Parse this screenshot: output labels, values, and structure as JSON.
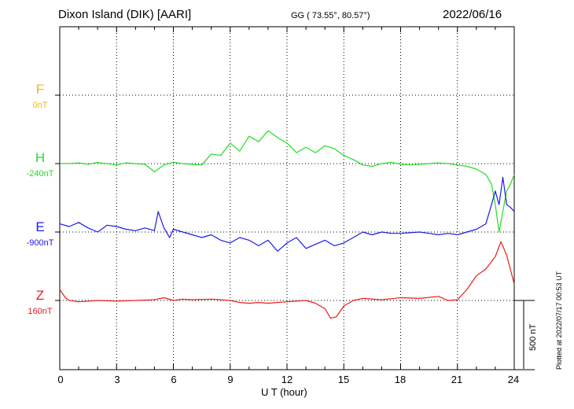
{
  "header": {
    "station": "Dixon Island (DIK)  [AARI]",
    "coords": "GG ( 73.55°,  80.57°)",
    "date": "2022/06/16"
  },
  "channels": [
    {
      "id": "F",
      "letter": "F",
      "baseline": "0nT",
      "color": "#f2b705"
    },
    {
      "id": "H",
      "letter": "H",
      "baseline": "-240nT",
      "color": "#22dd22"
    },
    {
      "id": "E",
      "letter": "E",
      "baseline": "-900nT",
      "color": "#1a1ae6"
    },
    {
      "id": "Z",
      "letter": "Z",
      "baseline": "160nT",
      "color": "#e81c1c"
    }
  ],
  "scale_bar": "500 nT",
  "footer": "Plotted at 2022/07/17 00:53 UT",
  "chart_data": {
    "type": "line",
    "xlabel": "U T (hour)",
    "xlim": [
      0,
      24
    ],
    "xticks": [
      0,
      3,
      6,
      9,
      12,
      15,
      18,
      21,
      24
    ],
    "x_tick_labels": [
      "0",
      "3",
      "6",
      "9",
      "12",
      "15",
      "18",
      "21",
      "24"
    ],
    "ylabel": "",
    "scale_nT_per_bar": 500,
    "grid": true,
    "series": [
      {
        "name": "H",
        "unit": "nT",
        "baseline": -240,
        "x": [
          0,
          0.5,
          1.0,
          1.5,
          2.0,
          2.5,
          3.0,
          3.5,
          4.0,
          4.5,
          5.0,
          5.5,
          6.0,
          6.5,
          7.0,
          7.5,
          8.0,
          8.5,
          9.0,
          9.5,
          10.0,
          10.5,
          11.0,
          11.5,
          12.0,
          12.5,
          13.0,
          13.5,
          14.0,
          14.5,
          15.0,
          15.5,
          16.0,
          16.5,
          17.0,
          17.5,
          18.0,
          18.5,
          19.0,
          19.5,
          20.0,
          20.5,
          21.0,
          21.5,
          22.0,
          22.5,
          22.8,
          23.0,
          23.2,
          23.4,
          23.6,
          23.8,
          24.0
        ],
        "values": [
          2,
          0,
          5,
          -5,
          8,
          0,
          -10,
          5,
          0,
          -5,
          -60,
          -10,
          10,
          0,
          -5,
          -10,
          70,
          60,
          150,
          90,
          200,
          160,
          240,
          190,
          150,
          80,
          120,
          80,
          130,
          110,
          60,
          30,
          -10,
          -20,
          0,
          10,
          -5,
          -10,
          -5,
          0,
          5,
          0,
          -10,
          -20,
          -40,
          -80,
          -150,
          -300,
          -500,
          -350,
          -200,
          -150,
          -80
        ]
      },
      {
        "name": "E",
        "unit": "nT",
        "baseline": -900,
        "x": [
          0,
          0.5,
          1.0,
          1.5,
          2.0,
          2.5,
          3.0,
          3.5,
          4.0,
          4.5,
          5.0,
          5.2,
          5.5,
          5.8,
          6.0,
          6.5,
          7.0,
          7.5,
          8.0,
          8.5,
          9.0,
          9.5,
          10.0,
          10.5,
          11.0,
          11.5,
          12.0,
          12.5,
          13.0,
          13.5,
          14.0,
          14.5,
          15.0,
          15.5,
          16.0,
          16.5,
          17.0,
          17.5,
          18.0,
          18.5,
          19.0,
          19.5,
          20.0,
          20.5,
          21.0,
          21.5,
          22.0,
          22.5,
          22.8,
          23.0,
          23.2,
          23.4,
          23.6,
          23.8,
          24.0
        ],
        "values": [
          60,
          40,
          70,
          30,
          0,
          50,
          40,
          20,
          10,
          30,
          10,
          150,
          30,
          -40,
          20,
          0,
          -20,
          -40,
          -20,
          -60,
          -80,
          -40,
          -60,
          -100,
          -60,
          -140,
          -80,
          -40,
          -120,
          -90,
          -60,
          -100,
          -80,
          -40,
          0,
          -20,
          0,
          -10,
          -10,
          -5,
          0,
          -10,
          -20,
          -10,
          -20,
          0,
          20,
          60,
          200,
          300,
          200,
          400,
          200,
          180,
          150
        ]
      },
      {
        "name": "Z",
        "unit": "nT",
        "baseline": 160,
        "x": [
          0,
          0.3,
          0.5,
          1.0,
          2.0,
          3.0,
          4.0,
          5.0,
          5.5,
          6.0,
          6.5,
          7.0,
          8.0,
          9.0,
          9.5,
          10.0,
          10.5,
          11.0,
          12.0,
          13.0,
          13.5,
          14.0,
          14.3,
          14.6,
          15.0,
          15.5,
          16.0,
          17.0,
          18.0,
          19.0,
          20.0,
          20.5,
          21.0,
          21.5,
          22.0,
          22.5,
          23.0,
          23.3,
          23.6,
          24.0
        ],
        "values": [
          80,
          20,
          0,
          -10,
          0,
          -5,
          0,
          5,
          20,
          0,
          10,
          5,
          10,
          0,
          -15,
          -20,
          -15,
          -20,
          -10,
          0,
          -20,
          -60,
          -130,
          -120,
          -40,
          0,
          15,
          5,
          20,
          15,
          30,
          0,
          5,
          80,
          180,
          230,
          320,
          430,
          330,
          120
        ]
      }
    ]
  }
}
